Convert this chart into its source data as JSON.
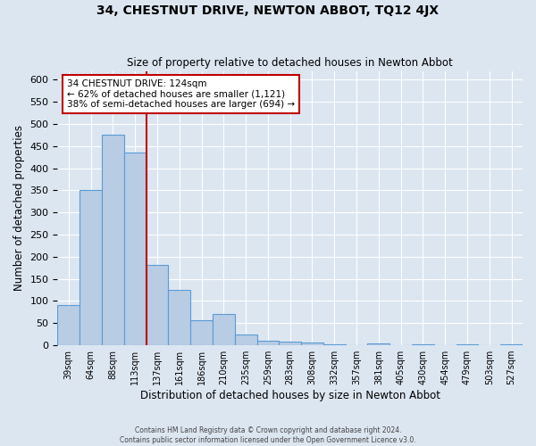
{
  "title": "34, CHESTNUT DRIVE, NEWTON ABBOT, TQ12 4JX",
  "subtitle": "Size of property relative to detached houses in Newton Abbot",
  "xlabel": "Distribution of detached houses by size in Newton Abbot",
  "ylabel": "Number of detached properties",
  "bar_values": [
    90,
    350,
    475,
    435,
    182,
    125,
    57,
    70,
    25,
    10,
    8,
    6,
    3,
    0,
    4,
    0,
    3,
    0,
    2,
    0,
    2
  ],
  "all_labels": [
    "39sqm",
    "64sqm",
    "88sqm",
    "113sqm",
    "137sqm",
    "161sqm",
    "186sqm",
    "210sqm",
    "235sqm",
    "259sqm",
    "283sqm",
    "308sqm",
    "332sqm",
    "357sqm",
    "381sqm",
    "405sqm",
    "430sqm",
    "454sqm",
    "479sqm",
    "503sqm",
    "527sqm"
  ],
  "bar_color": "#b8cce4",
  "bar_edge_color": "#5b9bd5",
  "vline_x": 4.0,
  "vline_color": "#c00000",
  "annotation_title": "34 CHESTNUT DRIVE: 124sqm",
  "annotation_line1": "← 62% of detached houses are smaller (1,121)",
  "annotation_line2": "38% of semi-detached houses are larger (694) →",
  "annotation_box_color": "#c00000",
  "ylim": [
    0,
    620
  ],
  "yticks": [
    0,
    50,
    100,
    150,
    200,
    250,
    300,
    350,
    400,
    450,
    500,
    550,
    600
  ],
  "footer1": "Contains HM Land Registry data © Crown copyright and database right 2024.",
  "footer2": "Contains public sector information licensed under the Open Government Licence v3.0.",
  "background_color": "#dce6f1",
  "plot_bg_color": "#dce6f1"
}
